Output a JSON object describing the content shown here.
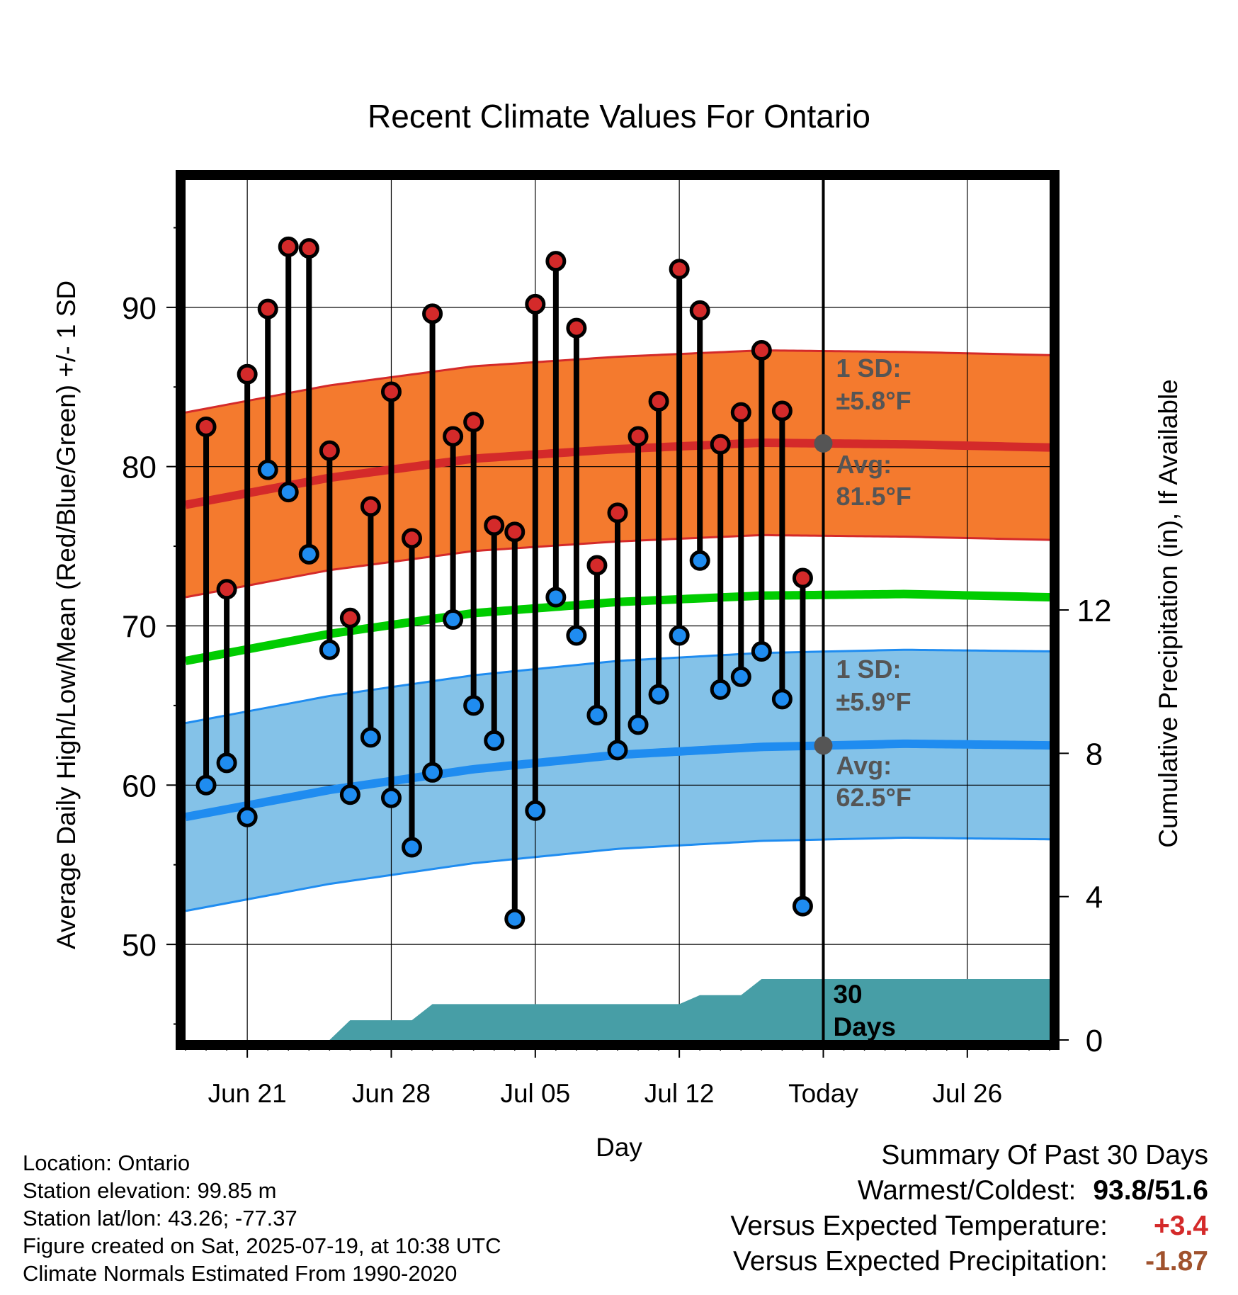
{
  "chart_data": {
    "type": "line",
    "title": "Recent Climate Values For Ontario",
    "xlabel": "Day",
    "ylabel": "Average Daily High/Low/Mean (Red/Blue/Green) +/- 1 SD",
    "y2label": "Cumulative Precipitation (in), If Available",
    "xlim": [
      "2025-06-18",
      "2025-07-30"
    ],
    "ylim": [
      44,
      98
    ],
    "y2lim": [
      0,
      24
    ],
    "x_ticks": [
      {
        "date": "2025-06-21",
        "label": "Jun 21"
      },
      {
        "date": "2025-06-28",
        "label": "Jun 28"
      },
      {
        "date": "2025-07-05",
        "label": "Jul 05"
      },
      {
        "date": "2025-07-12",
        "label": "Jul 12"
      },
      {
        "date": "2025-07-19",
        "label": "Today"
      },
      {
        "date": "2025-07-26",
        "label": "Jul 26"
      }
    ],
    "y_ticks": [
      50,
      60,
      70,
      80,
      90
    ],
    "y2_ticks": [
      0,
      4,
      8,
      12
    ],
    "grid": true,
    "today": "2025-07-19",
    "daily": [
      {
        "date": "2025-06-19",
        "high": 82.5,
        "low": 60.0
      },
      {
        "date": "2025-06-20",
        "high": 72.3,
        "low": 61.4
      },
      {
        "date": "2025-06-21",
        "high": 85.8,
        "low": 58.0
      },
      {
        "date": "2025-06-22",
        "high": 89.9,
        "low": 79.8
      },
      {
        "date": "2025-06-23",
        "high": 93.8,
        "low": 78.4
      },
      {
        "date": "2025-06-24",
        "high": 93.7,
        "low": 74.5
      },
      {
        "date": "2025-06-25",
        "high": 81.0,
        "low": 68.5
      },
      {
        "date": "2025-06-26",
        "high": 70.5,
        "low": 59.4
      },
      {
        "date": "2025-06-27",
        "high": 77.5,
        "low": 63.0
      },
      {
        "date": "2025-06-28",
        "high": 84.7,
        "low": 59.2
      },
      {
        "date": "2025-06-29",
        "high": 75.5,
        "low": 56.1
      },
      {
        "date": "2025-06-30",
        "high": 89.6,
        "low": 60.8
      },
      {
        "date": "2025-07-01",
        "high": 81.9,
        "low": 70.4
      },
      {
        "date": "2025-07-02",
        "high": 82.8,
        "low": 65.0
      },
      {
        "date": "2025-07-03",
        "high": 76.3,
        "low": 62.8
      },
      {
        "date": "2025-07-04",
        "high": 75.9,
        "low": 51.6
      },
      {
        "date": "2025-07-05",
        "high": 90.2,
        "low": 58.4
      },
      {
        "date": "2025-07-06",
        "high": 92.9,
        "low": 71.8
      },
      {
        "date": "2025-07-07",
        "high": 88.7,
        "low": 69.4
      },
      {
        "date": "2025-07-08",
        "high": 73.8,
        "low": 64.4
      },
      {
        "date": "2025-07-09",
        "high": 77.1,
        "low": 62.2
      },
      {
        "date": "2025-07-10",
        "high": 81.9,
        "low": 63.8
      },
      {
        "date": "2025-07-11",
        "high": 84.1,
        "low": 65.7
      },
      {
        "date": "2025-07-12",
        "high": 92.4,
        "low": 69.4
      },
      {
        "date": "2025-07-13",
        "high": 89.8,
        "low": 74.1
      },
      {
        "date": "2025-07-14",
        "high": 81.4,
        "low": 66.0
      },
      {
        "date": "2025-07-15",
        "high": 83.4,
        "low": 66.8
      },
      {
        "date": "2025-07-16",
        "high": 87.3,
        "low": 68.4
      },
      {
        "date": "2025-07-17",
        "high": 83.5,
        "low": 65.4
      },
      {
        "date": "2025-07-18",
        "high": 73.0,
        "low": 52.4
      }
    ],
    "normals": {
      "dates": [
        "2025-06-18",
        "2025-06-25",
        "2025-07-02",
        "2025-07-09",
        "2025-07-16",
        "2025-07-23",
        "2025-07-30"
      ],
      "high_avg": [
        77.6,
        79.3,
        80.5,
        81.1,
        81.5,
        81.4,
        81.2
      ],
      "high_sd": 5.8,
      "low_avg": [
        58.0,
        59.7,
        61.0,
        61.9,
        62.4,
        62.6,
        62.5
      ],
      "low_sd": 5.9,
      "mean_avg": [
        67.8,
        69.5,
        70.8,
        71.5,
        71.9,
        72.0,
        71.8
      ]
    },
    "precipitation": {
      "dates": [
        "2025-06-18",
        "2025-06-25",
        "2025-06-26",
        "2025-06-29",
        "2025-06-30",
        "2025-07-12",
        "2025-07-13",
        "2025-07-15",
        "2025-07-16",
        "2025-07-30"
      ],
      "values": [
        0.0,
        0.0,
        0.55,
        0.55,
        1.0,
        1.0,
        1.25,
        1.25,
        1.7,
        1.7
      ]
    },
    "annotations": {
      "high_sd_label": "1 SD:",
      "high_sd_value": "±5.8°F",
      "high_avg_label": "Avg:",
      "high_avg_value": "81.5°F",
      "low_sd_label": "1 SD:",
      "low_sd_value": "±5.9°F",
      "low_avg_label": "Avg:",
      "low_avg_value": "62.5°F",
      "window_number": "30",
      "window_unit": "Days"
    },
    "colors": {
      "high_band": "#f47a2e",
      "high_line": "#d42a2a",
      "low_band": "#84c2e8",
      "low_line": "#1f8cf0",
      "mean_line": "#00cc00",
      "precip_fill": "#479ea6",
      "high_marker": "#d42a2a",
      "low_marker": "#1f8cf0",
      "annotation": "#555555",
      "anomaly_warm": "#d42a2a",
      "anomaly_dry": "#a0522d"
    }
  },
  "footer": {
    "location": "Location: Ontario",
    "elevation": "Station elevation: 99.85 m",
    "latlon": "Station lat/lon: 43.26; -77.37",
    "created": "Figure created on Sat, 2025-07-19, at 10:38 UTC",
    "normals": "Climate Normals Estimated From 1990-2020"
  },
  "summary": {
    "title": "Summary Of Past 30 Days",
    "warmest_coldest_label": "Warmest/Coldest:",
    "warmest_coldest_value": "93.8/51.6",
    "temp_label": "Versus Expected Temperature:",
    "temp_value": "+3.4",
    "precip_label": "Versus Expected Precipitation:",
    "precip_value": "-1.87"
  }
}
